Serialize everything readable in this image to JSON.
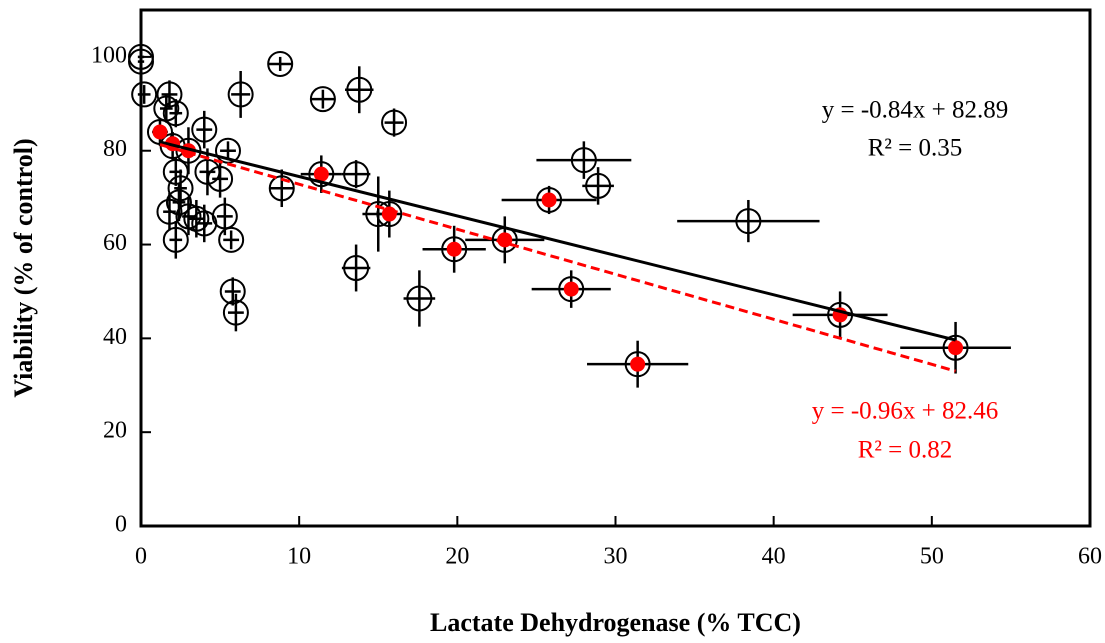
{
  "chart_data": {
    "type": "scatter",
    "x_label": "Lactate Dehydrogenase (% TCC)",
    "y_label": "Viability (% of control)",
    "xlim": [
      0,
      60
    ],
    "ylim": [
      0,
      110
    ],
    "xticks": [
      0,
      10,
      20,
      30,
      40,
      50,
      60
    ],
    "yticks": [
      0,
      20,
      40,
      60,
      80,
      100
    ],
    "series": [
      {
        "color": "#000000",
        "marker": "open",
        "x": [
          0,
          0,
          0.2,
          1.8,
          1.6,
          2.2,
          1.2,
          4,
          2,
          3,
          5.5,
          6.3,
          8.8,
          11.5,
          13.8,
          16,
          2.2,
          2.5,
          2.4,
          4.2,
          5,
          1.8,
          3,
          3.5,
          4,
          5.3,
          2.2,
          5.7,
          5.8,
          6,
          8.9,
          11.4,
          13.6,
          13.6,
          15,
          15.7,
          17.6,
          19.8,
          23,
          25.8,
          27.2,
          28,
          28.9,
          31.4,
          38.4,
          44.2,
          51.5
        ],
        "values": [
          100,
          99,
          92,
          92,
          89,
          88,
          84,
          84.5,
          81,
          80,
          80,
          92,
          98.5,
          91,
          93,
          86,
          75.5,
          72,
          69,
          75.5,
          74,
          67,
          66,
          65.5,
          64.5,
          66,
          61,
          61,
          50,
          45.5,
          72,
          75,
          75,
          55,
          66.5,
          66.5,
          48.5,
          59,
          61,
          69.5,
          50.5,
          78,
          72.5,
          34.5,
          65,
          45,
          38
        ],
        "xerr": [
          0.2,
          0.2,
          0.4,
          0.5,
          0.4,
          0.4,
          0.5,
          0.5,
          0.4,
          0.5,
          0.5,
          0.6,
          0.8,
          0.8,
          0.9,
          0.6,
          0.4,
          0.4,
          0.4,
          0.5,
          0.5,
          0.4,
          0.4,
          0.5,
          0.5,
          0.5,
          0.4,
          0.5,
          0.5,
          0.5,
          0.8,
          1.3,
          0.9,
          0.9,
          1,
          0.8,
          1,
          2,
          2.5,
          3,
          2.5,
          3,
          1,
          3.2,
          4.5,
          3,
          3.5
        ],
        "yerr": [
          1.5,
          1.5,
          2,
          3,
          3,
          3,
          3,
          4,
          3,
          5,
          2,
          5,
          1.5,
          2,
          5,
          3,
          3,
          4,
          4,
          5,
          4,
          4,
          4,
          4,
          4,
          4,
          4,
          2,
          3,
          4,
          4,
          4,
          3,
          5,
          8,
          5,
          6,
          5,
          5,
          3,
          4,
          4,
          4,
          5,
          4.5,
          5,
          5.5
        ]
      },
      {
        "color": "#ff0000",
        "marker": "filled",
        "x": [
          1.2,
          2,
          3,
          11.4,
          15.7,
          19.8,
          23,
          25.8,
          27.2,
          31.4,
          44.2,
          51.5
        ],
        "values": [
          84,
          81.5,
          80,
          75,
          66.5,
          59,
          61,
          69.5,
          50.5,
          34.5,
          45,
          38
        ]
      },
      {
        "color": "#000000",
        "marker": "line",
        "x": [
          1.2,
          51.5
        ],
        "values": [
          81.88,
          39.63
        ]
      },
      {
        "color": "#ff0000",
        "marker": "dashed",
        "x": [
          1.2,
          51.5
        ],
        "values": [
          81.31,
          33.02
        ]
      }
    ],
    "annotations": [
      {
        "text": "y = -0.84x + 82.89",
        "color": "#000000"
      },
      {
        "text": "R² = 0.35",
        "color": "#000000"
      },
      {
        "text": "y = -0.96x + 82.46",
        "color": "#ff0000"
      },
      {
        "text": "R² = 0.82",
        "color": "#ff0000"
      }
    ]
  }
}
